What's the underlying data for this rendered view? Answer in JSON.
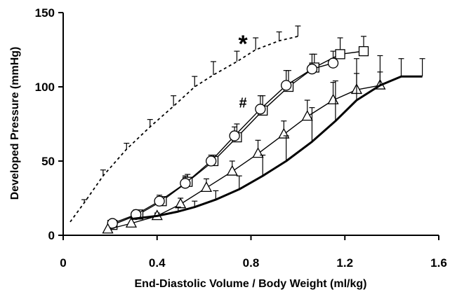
{
  "chart_data": {
    "type": "line",
    "title": "",
    "xlabel": "End-Diastolic Volume / Body Weight (ml/kg)",
    "ylabel": "Developed Pressure (mmHg)",
    "xlim": [
      0,
      1.6
    ],
    "ylim": [
      0,
      150
    ],
    "x_ticks": [
      0,
      0.4,
      0.8,
      1.2,
      1.6
    ],
    "x_tick_labels": [
      "0",
      "0.4",
      "0.8",
      "1.2",
      "1.6"
    ],
    "y_ticks": [
      0,
      50,
      100,
      150
    ],
    "y_tick_labels": [
      "0",
      "50",
      "100",
      "150"
    ],
    "grid": false,
    "legend": "none",
    "annotations": [
      {
        "text": "*",
        "x": 0.73,
        "y": 133
      },
      {
        "text": "#",
        "x": 0.73,
        "y": 89
      }
    ],
    "series": [
      {
        "style": "dashed",
        "marker": "none",
        "color": "#000000",
        "x": [
          0.03,
          0.09,
          0.17,
          0.27,
          0.37,
          0.47,
          0.56,
          0.64,
          0.74,
          0.82,
          0.92,
          1.0
        ],
        "y": [
          9,
          22,
          40,
          58,
          73,
          87,
          100,
          108,
          117,
          125,
          131,
          134
        ],
        "err": [
          0,
          2,
          4,
          4,
          5,
          7,
          7,
          9,
          7,
          8,
          6,
          7
        ]
      },
      {
        "style": "solid",
        "marker": "square",
        "color": "#000000",
        "x": [
          0.21,
          0.32,
          0.42,
          0.53,
          0.64,
          0.74,
          0.85,
          0.96,
          1.07,
          1.18,
          1.28
        ],
        "y": [
          7,
          14,
          23,
          36,
          50,
          66,
          84,
          100,
          113,
          122,
          124
        ],
        "err": [
          3,
          2,
          3,
          5,
          4,
          9,
          10,
          11,
          9,
          11,
          10
        ]
      },
      {
        "style": "solid",
        "marker": "circle",
        "color": "#000000",
        "x": [
          0.21,
          0.31,
          0.41,
          0.52,
          0.63,
          0.73,
          0.84,
          0.95,
          1.06,
          1.15
        ],
        "y": [
          8,
          14,
          23,
          35,
          50,
          67,
          85,
          101,
          112,
          116
        ],
        "err": [
          2,
          3,
          4,
          5,
          4,
          6,
          9,
          10,
          10,
          8
        ]
      },
      {
        "style": "solid",
        "marker": "triangle",
        "color": "#000000",
        "x": [
          0.19,
          0.29,
          0.4,
          0.5,
          0.61,
          0.72,
          0.83,
          0.94,
          1.04,
          1.15,
          1.25,
          1.35
        ],
        "y": [
          4,
          8,
          13,
          21,
          32,
          43,
          55,
          68,
          80,
          91,
          98,
          101
        ],
        "err": [
          0,
          0,
          2,
          4,
          6,
          7,
          9,
          9,
          11,
          12,
          11,
          9
        ]
      },
      {
        "style": "solid-bold",
        "marker": "none",
        "color": "#000000",
        "x": [
          0.29,
          0.4,
          0.49,
          0.56,
          0.65,
          0.75,
          0.85,
          0.95,
          1.06,
          1.16,
          1.25,
          1.35,
          1.44,
          1.53
        ],
        "y": [
          11,
          13,
          16,
          19,
          24,
          31,
          40,
          50,
          63,
          77,
          91,
          101,
          107,
          107
        ],
        "err": [
          0,
          0,
          3,
          4,
          6,
          9,
          14,
          17,
          23,
          27,
          28,
          20,
          12,
          12
        ]
      }
    ]
  }
}
